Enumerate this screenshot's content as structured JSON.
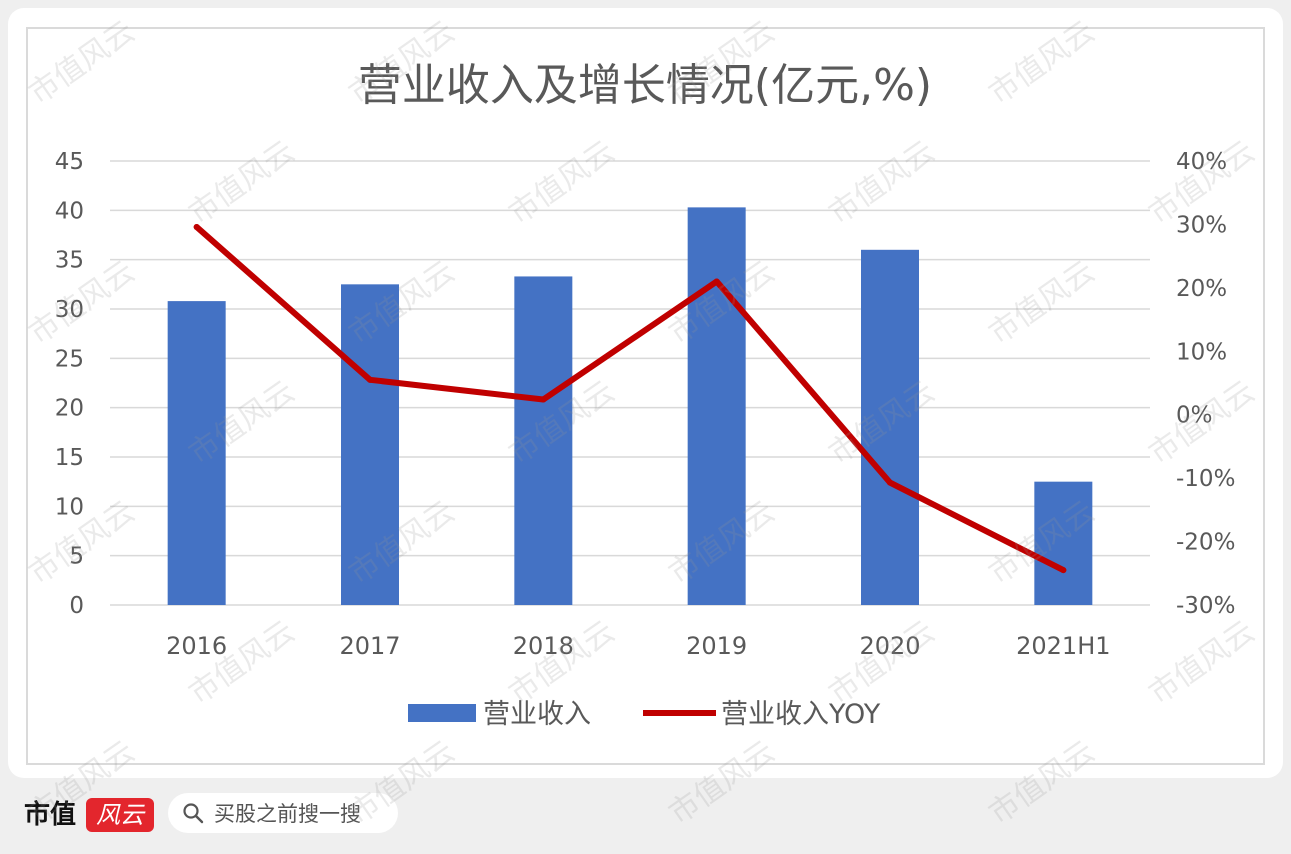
{
  "chart_data": {
    "type": "bar",
    "title": "营业收入及增长情况(亿元,%)",
    "categories": [
      "2016",
      "2017",
      "2018",
      "2019",
      "2020",
      "2021H1"
    ],
    "series": [
      {
        "name": "营业收入",
        "type": "bar",
        "color": "#4472C4",
        "values": [
          30.8,
          32.5,
          33.3,
          40.3,
          36.0,
          12.5
        ]
      },
      {
        "name": "营业收入YOY",
        "type": "line",
        "color": "#C00000",
        "values": [
          29.6,
          5.5,
          2.4,
          21.0,
          -10.7,
          -24.5
        ]
      }
    ],
    "y_left": {
      "ylim": [
        0,
        45
      ],
      "ticks": [
        "0",
        "5",
        "10",
        "15",
        "20",
        "25",
        "30",
        "35",
        "40",
        "45"
      ]
    },
    "y_right": {
      "ylim": [
        -30,
        40
      ],
      "ticks": [
        "-30%",
        "-20%",
        "-10%",
        "0%",
        "10%",
        "20%",
        "30%",
        "40%"
      ]
    },
    "grid": true,
    "legend": "bottom"
  },
  "watermark": "市值风云",
  "brand": {
    "left": "市值",
    "right": "风云",
    "accent": "#E3262D"
  },
  "search": {
    "icon": "search-icon",
    "placeholder": "买股之前搜一搜"
  }
}
